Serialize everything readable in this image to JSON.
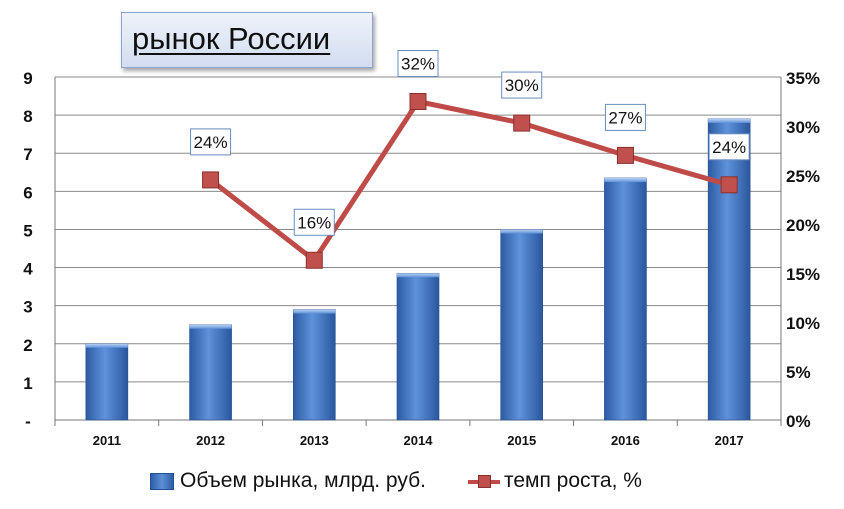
{
  "title": "рынок России",
  "legend": {
    "bars_label": "Объем рынка, млрд. руб.",
    "line_label": "темп роста, %"
  },
  "colors": {
    "bar": "#4a7cc6",
    "line": "#be4b48",
    "marker": "#c0504d"
  },
  "chart_data": {
    "type": "bar",
    "categories": [
      "2011",
      "2012",
      "2013",
      "2014",
      "2015",
      "2016",
      "2017"
    ],
    "series": [
      {
        "name": "Объем рынка, млрд. руб.",
        "type": "bar",
        "axis": "left",
        "values": [
          2.0,
          2.5,
          2.9,
          3.85,
          5.0,
          6.35,
          7.9
        ]
      },
      {
        "name": "темп роста, %",
        "type": "line",
        "axis": "right",
        "values": [
          null,
          24.5,
          16.3,
          32.5,
          30.3,
          27.0,
          24.0
        ],
        "data_labels": [
          "",
          "24%",
          "16%",
          "32%",
          "30%",
          "27%",
          "24%"
        ]
      }
    ],
    "y_left": {
      "ylim": [
        0,
        9
      ],
      "ticks": [
        0,
        1,
        2,
        3,
        4,
        5,
        6,
        7,
        8,
        9
      ],
      "tick_labels": [
        "-",
        "1",
        "2",
        "3",
        "4",
        "5",
        "6",
        "7",
        "8",
        "9"
      ]
    },
    "y_right": {
      "ylim": [
        0,
        35
      ],
      "ticks": [
        0,
        5,
        10,
        15,
        20,
        25,
        30,
        35
      ],
      "tick_labels": [
        "0%",
        "5%",
        "10%",
        "15%",
        "20%",
        "25%",
        "30%",
        "35%"
      ]
    },
    "grid": true,
    "legend_position": "bottom"
  }
}
